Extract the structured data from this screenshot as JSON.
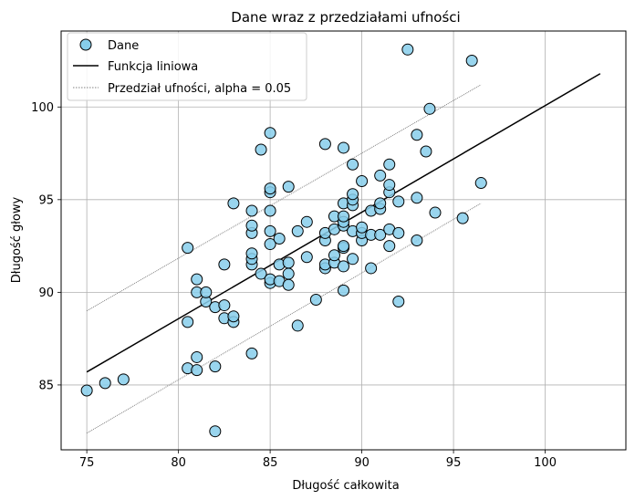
{
  "chart_data": {
    "type": "scatter",
    "title": "Dane wraz z przedziałami ufności",
    "xlabel": "Długość całkowita",
    "ylabel": "Długość głowy",
    "xlim": [
      73.6,
      104.4
    ],
    "ylim": [
      81.5,
      104.1
    ],
    "xticks": [
      75,
      80,
      85,
      90,
      95,
      100
    ],
    "yticks": [
      85,
      90,
      95,
      100
    ],
    "grid": true,
    "legend_position": "top-left",
    "colors": {
      "points_fill": "#87ceeb",
      "points_edge": "#000000",
      "line": "#000000",
      "ci": "#808080"
    },
    "legend": [
      {
        "label": "Dane",
        "kind": "marker"
      },
      {
        "label": "Funkcja liniowa",
        "kind": "line"
      },
      {
        "label": "Przedział ufności, alpha = 0.05",
        "kind": "dotted"
      }
    ],
    "series": [
      {
        "name": "Dane",
        "kind": "scatter",
        "points": [
          [
            75,
            84.7
          ],
          [
            76,
            85.1
          ],
          [
            77,
            85.3
          ],
          [
            80.5,
            85.9
          ],
          [
            80.5,
            88.4
          ],
          [
            80.5,
            92.4
          ],
          [
            81,
            85.8
          ],
          [
            81,
            86.5
          ],
          [
            81,
            90.0
          ],
          [
            81,
            90.7
          ],
          [
            81.5,
            89.5
          ],
          [
            81.5,
            90.0
          ],
          [
            82,
            82.5
          ],
          [
            82,
            86.0
          ],
          [
            82,
            89.2
          ],
          [
            82.5,
            88.6
          ],
          [
            82.5,
            89.3
          ],
          [
            82.5,
            91.5
          ],
          [
            83,
            88.4
          ],
          [
            83,
            88.7
          ],
          [
            83,
            94.8
          ],
          [
            84,
            86.7
          ],
          [
            84,
            91.5
          ],
          [
            84,
            91.8
          ],
          [
            84,
            92.1
          ],
          [
            84,
            93.2
          ],
          [
            84,
            93.6
          ],
          [
            84,
            94.4
          ],
          [
            84.5,
            91.0
          ],
          [
            84.5,
            97.7
          ],
          [
            85,
            90.5
          ],
          [
            85,
            90.7
          ],
          [
            85,
            92.6
          ],
          [
            85,
            93.3
          ],
          [
            85,
            94.4
          ],
          [
            85,
            95.4
          ],
          [
            85,
            95.6
          ],
          [
            85,
            98.6
          ],
          [
            85.5,
            90.6
          ],
          [
            85.5,
            91.5
          ],
          [
            85.5,
            92.9
          ],
          [
            86,
            90.4
          ],
          [
            86,
            91.0
          ],
          [
            86,
            91.6
          ],
          [
            86,
            95.7
          ],
          [
            86.5,
            88.2
          ],
          [
            86.5,
            93.3
          ],
          [
            87,
            91.9
          ],
          [
            87,
            93.8
          ],
          [
            87.5,
            89.6
          ],
          [
            88,
            91.3
          ],
          [
            88,
            91.5
          ],
          [
            88,
            92.8
          ],
          [
            88,
            93.2
          ],
          [
            88,
            98.0
          ],
          [
            88.5,
            91.6
          ],
          [
            88.5,
            92.0
          ],
          [
            88.5,
            93.4
          ],
          [
            88.5,
            94.1
          ],
          [
            89,
            90.1
          ],
          [
            89,
            91.4
          ],
          [
            89,
            92.4
          ],
          [
            89,
            92.5
          ],
          [
            89,
            93.6
          ],
          [
            89,
            93.8
          ],
          [
            89,
            94.1
          ],
          [
            89,
            94.8
          ],
          [
            89,
            97.8
          ],
          [
            89.5,
            91.8
          ],
          [
            89.5,
            93.3
          ],
          [
            89.5,
            94.7
          ],
          [
            89.5,
            95.0
          ],
          [
            89.5,
            95.3
          ],
          [
            89.5,
            96.9
          ],
          [
            90,
            92.8
          ],
          [
            90,
            93.2
          ],
          [
            90,
            93.5
          ],
          [
            90,
            96.0
          ],
          [
            90.5,
            91.3
          ],
          [
            90.5,
            93.1
          ],
          [
            90.5,
            94.4
          ],
          [
            91,
            93.1
          ],
          [
            91,
            94.5
          ],
          [
            91,
            94.8
          ],
          [
            91,
            96.3
          ],
          [
            91.5,
            92.5
          ],
          [
            91.5,
            93.4
          ],
          [
            91.5,
            95.4
          ],
          [
            91.5,
            95.8
          ],
          [
            91.5,
            96.9
          ],
          [
            92,
            89.5
          ],
          [
            92,
            93.2
          ],
          [
            92,
            94.9
          ],
          [
            92.5,
            103.1
          ],
          [
            93,
            92.8
          ],
          [
            93,
            95.1
          ],
          [
            93,
            98.5
          ],
          [
            93.5,
            97.6
          ],
          [
            93.7,
            99.9
          ],
          [
            94,
            94.3
          ],
          [
            95.5,
            94.0
          ],
          [
            96,
            102.5
          ],
          [
            96.5,
            95.9
          ]
        ]
      },
      {
        "name": "Funkcja liniowa",
        "kind": "line",
        "x": [
          75,
          103
        ],
        "y": [
          85.7,
          101.8
        ]
      },
      {
        "name": "Przedział ufności, alpha = 0.05",
        "kind": "ci",
        "upper": {
          "x": [
            75,
            96.5
          ],
          "y": [
            89.0,
            101.2
          ]
        },
        "lower": {
          "x": [
            75,
            96.5
          ],
          "y": [
            82.4,
            94.8
          ]
        }
      }
    ]
  }
}
